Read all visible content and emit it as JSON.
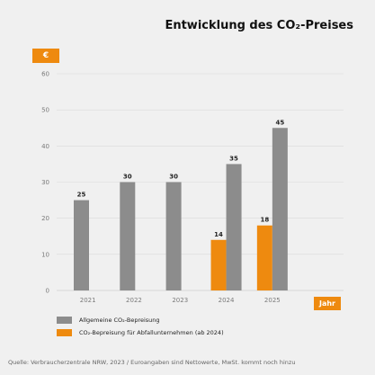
{
  "chart_data": {
    "type": "bar",
    "title": "Entwicklung des CO₂-Preises",
    "ylabel": "€",
    "xlabel": "Jahr",
    "ylim": [
      0,
      60
    ],
    "yticks": [
      0,
      10,
      20,
      30,
      40,
      50,
      60
    ],
    "grid": true,
    "legend_position": "bottom-left",
    "categories": [
      "2021",
      "2022",
      "2023",
      "2024",
      "2025"
    ],
    "series": [
      {
        "name": "Allgemeine CO₂-Bepreisung",
        "color": "#8c8c8c",
        "values": [
          25,
          30,
          30,
          35,
          45
        ]
      },
      {
        "name": "CO₂-Bepreisung für Abfallunternehmen (ab 2024)",
        "color": "#ee8a0f",
        "values": [
          null,
          null,
          null,
          14,
          18
        ]
      }
    ]
  },
  "source": "Quelle: Verbraucherzentrale NRW, 2023 / Euroangaben sind Nettowerte, MwSt. kommt noch hinzu"
}
